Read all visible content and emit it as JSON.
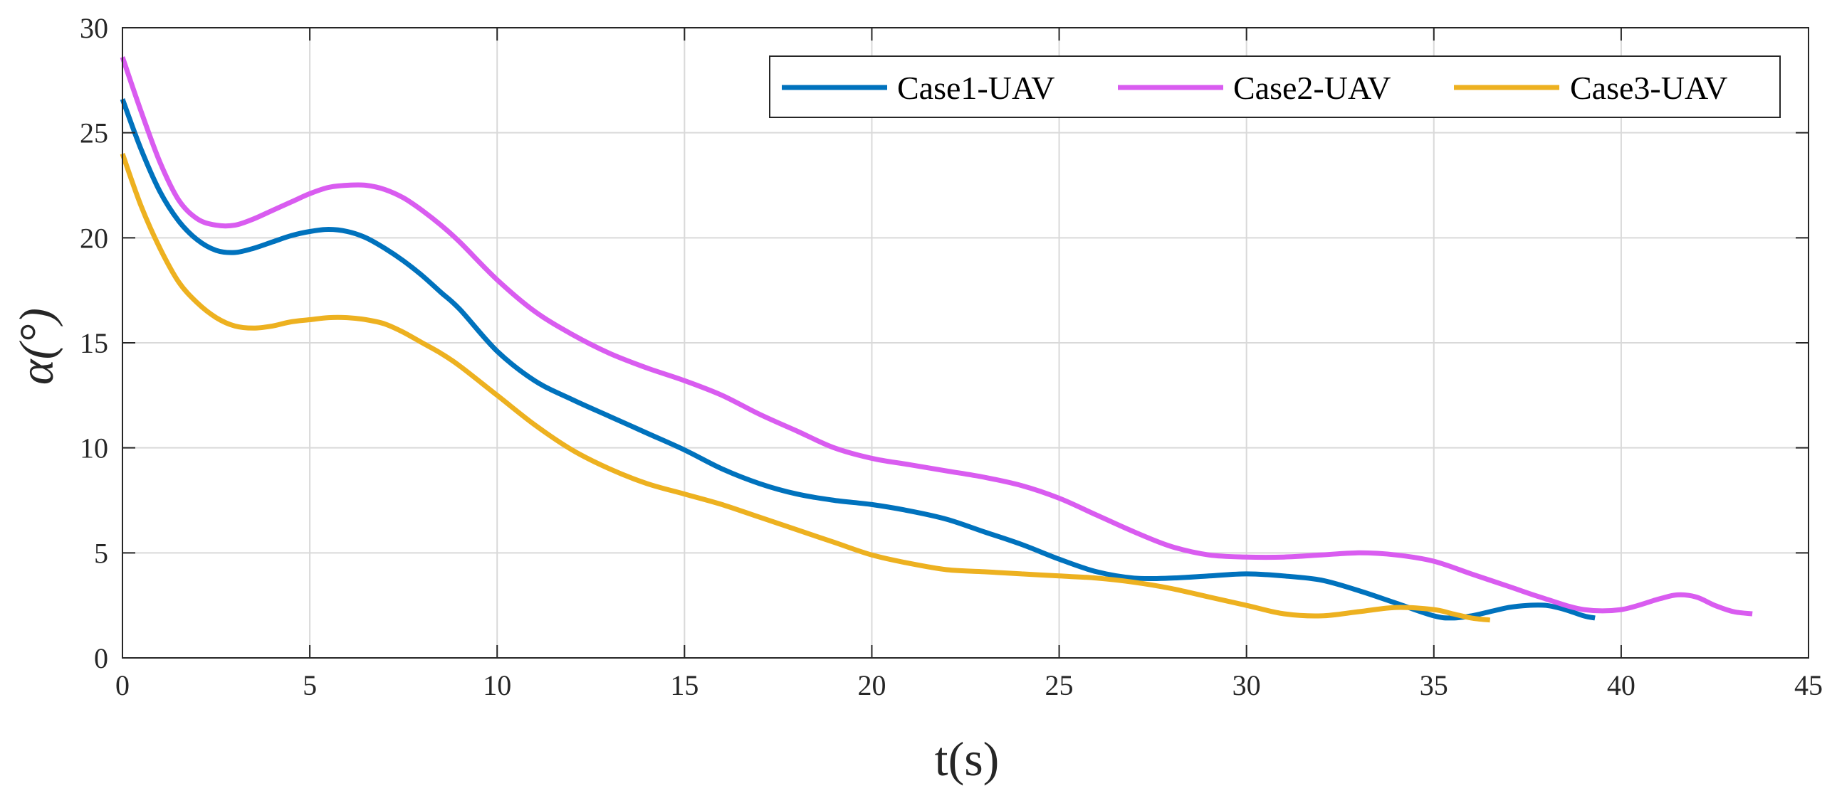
{
  "chart_data": {
    "type": "line",
    "title": "",
    "xlabel": "t(s)",
    "ylabel": "α(°)",
    "xlim": [
      0,
      45
    ],
    "ylim": [
      0,
      30
    ],
    "xticks": [
      0,
      5,
      10,
      15,
      20,
      25,
      30,
      35,
      40,
      45
    ],
    "yticks": [
      0,
      5,
      10,
      15,
      20,
      25,
      30
    ],
    "grid": true,
    "legend_position": "top-right",
    "series": [
      {
        "name": "Case1-UAV",
        "color": "#0072BD",
        "x": [
          0,
          0.5,
          1,
          1.5,
          2,
          2.5,
          3,
          3.5,
          4,
          4.5,
          5,
          5.5,
          6,
          6.5,
          7,
          7.5,
          8,
          8.5,
          9,
          10,
          11,
          12,
          13,
          14,
          15,
          16,
          17,
          18,
          19,
          20,
          21,
          22,
          23,
          24,
          25,
          26,
          27,
          28,
          29,
          30,
          31,
          32,
          33,
          34,
          35,
          35.5,
          36,
          36.5,
          37,
          37.5,
          38,
          38.5,
          39,
          39.3
        ],
        "y": [
          26.6,
          24.2,
          22.2,
          20.8,
          19.9,
          19.4,
          19.3,
          19.5,
          19.8,
          20.1,
          20.3,
          20.4,
          20.3,
          20.0,
          19.5,
          18.9,
          18.2,
          17.4,
          16.6,
          14.6,
          13.2,
          12.3,
          11.5,
          10.7,
          9.9,
          9.0,
          8.3,
          7.8,
          7.5,
          7.3,
          7.0,
          6.6,
          6.0,
          5.4,
          4.7,
          4.1,
          3.8,
          3.8,
          3.9,
          4.0,
          3.9,
          3.7,
          3.2,
          2.6,
          2.0,
          1.9,
          2.0,
          2.2,
          2.4,
          2.5,
          2.5,
          2.3,
          2.0,
          1.9
        ]
      },
      {
        "name": "Case2-UAV",
        "color": "#D95CF0",
        "x": [
          0,
          0.5,
          1,
          1.5,
          2,
          2.5,
          3,
          3.5,
          4,
          4.5,
          5,
          5.5,
          6,
          6.5,
          7,
          7.5,
          8,
          8.5,
          9,
          10,
          11,
          12,
          13,
          14,
          15,
          16,
          17,
          18,
          19,
          20,
          21,
          22,
          23,
          24,
          25,
          26,
          27,
          28,
          29,
          30,
          31,
          32,
          33,
          34,
          35,
          36,
          37,
          38,
          39,
          40,
          41,
          41.5,
          42,
          42.5,
          43,
          43.5
        ],
        "y": [
          28.6,
          26.0,
          23.6,
          21.8,
          20.9,
          20.6,
          20.6,
          20.9,
          21.3,
          21.7,
          22.1,
          22.4,
          22.5,
          22.5,
          22.3,
          21.9,
          21.3,
          20.6,
          19.8,
          18.0,
          16.5,
          15.4,
          14.5,
          13.8,
          13.2,
          12.5,
          11.6,
          10.8,
          10.0,
          9.5,
          9.2,
          8.9,
          8.6,
          8.2,
          7.6,
          6.8,
          6.0,
          5.3,
          4.9,
          4.8,
          4.8,
          4.9,
          5.0,
          4.9,
          4.6,
          4.0,
          3.4,
          2.8,
          2.3,
          2.3,
          2.8,
          3.0,
          2.9,
          2.5,
          2.2,
          2.1
        ]
      },
      {
        "name": "Case3-UAV",
        "color": "#EDB120",
        "x": [
          0,
          0.5,
          1,
          1.5,
          2,
          2.5,
          3,
          3.5,
          4,
          4.5,
          5,
          5.5,
          6,
          6.5,
          7,
          7.5,
          8,
          8.5,
          9,
          10,
          11,
          12,
          13,
          14,
          15,
          16,
          17,
          18,
          19,
          20,
          21,
          22,
          23,
          24,
          25,
          26,
          27,
          28,
          29,
          30,
          31,
          32,
          33,
          34,
          35,
          35.5,
          36,
          36.5
        ],
        "y": [
          24.0,
          21.5,
          19.5,
          17.9,
          16.9,
          16.2,
          15.8,
          15.7,
          15.8,
          16.0,
          16.1,
          16.2,
          16.2,
          16.1,
          15.9,
          15.5,
          15.0,
          14.5,
          13.9,
          12.5,
          11.1,
          9.9,
          9.0,
          8.3,
          7.8,
          7.3,
          6.7,
          6.1,
          5.5,
          4.9,
          4.5,
          4.2,
          4.1,
          4.0,
          3.9,
          3.8,
          3.6,
          3.3,
          2.9,
          2.5,
          2.1,
          2.0,
          2.2,
          2.4,
          2.3,
          2.1,
          1.9,
          1.8
        ]
      }
    ]
  }
}
